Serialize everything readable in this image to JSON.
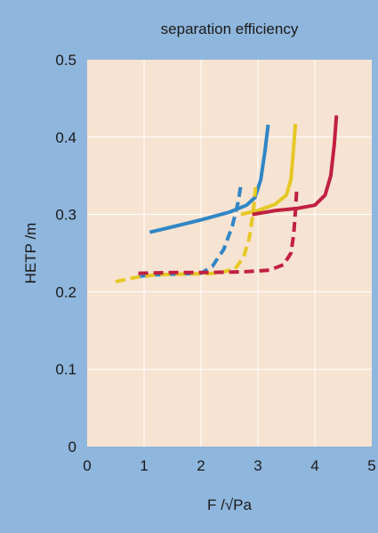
{
  "chart_data": {
    "type": "line",
    "title": "separation efficiency",
    "xlabel": "F /√Pa",
    "ylabel": "HETP /m",
    "xlim": [
      0,
      5
    ],
    "ylim": [
      0,
      0.5
    ],
    "xticks": [
      "0",
      "1",
      "2",
      "3",
      "4",
      "5"
    ],
    "yticks": [
      "0",
      "0.1",
      "0.2",
      "0.3",
      "0.4",
      "0.5"
    ],
    "grid": true,
    "legend": "none",
    "colors": {
      "background": "#8fb6dc",
      "plot_area": "#f7e3d1",
      "grid": "#ffffff",
      "blue": "#2f86c6",
      "yellow": "#e6c825",
      "red": "#c1203f"
    },
    "series": [
      {
        "color": "#2f86c6",
        "style": "solid",
        "x": [
          1.1,
          1.5,
          2.0,
          2.5,
          2.8,
          2.95,
          3.05,
          3.12,
          3.18
        ],
        "y": [
          0.277,
          0.284,
          0.293,
          0.303,
          0.312,
          0.322,
          0.345,
          0.38,
          0.416
        ]
      },
      {
        "color": "#e6c825",
        "style": "solid",
        "x": [
          2.7,
          3.0,
          3.3,
          3.5,
          3.58,
          3.62,
          3.66
        ],
        "y": [
          0.3,
          0.305,
          0.313,
          0.325,
          0.345,
          0.38,
          0.417
        ]
      },
      {
        "color": "#c1203f",
        "style": "solid",
        "x": [
          2.9,
          3.3,
          3.7,
          4.0,
          4.18,
          4.28,
          4.34,
          4.38
        ],
        "y": [
          0.3,
          0.305,
          0.308,
          0.312,
          0.325,
          0.35,
          0.39,
          0.428
        ]
      },
      {
        "color": "#2f86c6",
        "style": "dashed",
        "x": [
          0.9,
          1.2,
          1.6,
          2.0,
          2.2,
          2.4,
          2.55,
          2.65,
          2.7
        ],
        "y": [
          0.22,
          0.222,
          0.223,
          0.224,
          0.233,
          0.255,
          0.285,
          0.315,
          0.338
        ]
      },
      {
        "color": "#e6c825",
        "style": "dashed",
        "x": [
          0.5,
          0.8,
          1.2,
          1.8,
          2.3,
          2.6,
          2.75,
          2.85,
          2.92,
          2.96
        ],
        "y": [
          0.213,
          0.218,
          0.222,
          0.223,
          0.224,
          0.23,
          0.245,
          0.27,
          0.305,
          0.335
        ]
      },
      {
        "color": "#c1203f",
        "style": "dashed",
        "x": [
          0.9,
          1.5,
          2.2,
          2.8,
          3.2,
          3.45,
          3.58,
          3.63,
          3.66,
          3.68
        ],
        "y": [
          0.224,
          0.225,
          0.225,
          0.226,
          0.228,
          0.235,
          0.25,
          0.275,
          0.305,
          0.33
        ]
      }
    ]
  }
}
